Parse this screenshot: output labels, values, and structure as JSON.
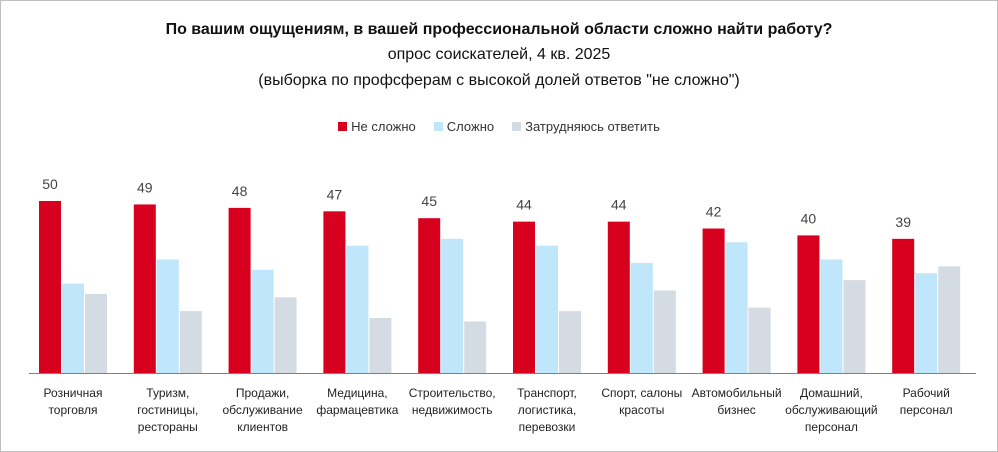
{
  "chart_data": {
    "type": "bar",
    "title": "По вашим ощущениям, в вашей профессиональной области сложно найти работу?",
    "subtitle": "опрос соискателей, 4 кв. 2025",
    "note": "(выборка по профсферам с высокой долей ответов \"не сложно\")",
    "legend_position": "top",
    "grid": false,
    "categories": [
      "Розничная\nторговля",
      "Туризм,\nгостиницы,\nрестораны",
      "Продажи,\nобслуживание\nклиентов",
      "Медицина,\nфармацевтика",
      "Строительство,\nнедвижимость",
      "Транспорт,\nлогистика,\nперевозки",
      "Спорт, салоны\nкрасоты",
      "Автомобильный\nбизнес",
      "Домашний,\nобслуживающий\nперсонал",
      "Рабочий\nперсонал"
    ],
    "series": [
      {
        "name": "Не сложно",
        "color": "#d7001f",
        "values": [
          50,
          49,
          48,
          47,
          45,
          44,
          44,
          42,
          40,
          39
        ],
        "labeled": true
      },
      {
        "name": "Сложно",
        "color": "#bfe6fb",
        "values": [
          26,
          33,
          30,
          37,
          39,
          37,
          32,
          38,
          33,
          29
        ],
        "labeled": false
      },
      {
        "name": "Затрудняюсь ответить",
        "color": "#d5dbe3",
        "values": [
          23,
          18,
          22,
          16,
          15,
          18,
          24,
          19,
          27,
          31
        ],
        "labeled": false
      }
    ],
    "ylim": [
      0,
      55
    ]
  }
}
